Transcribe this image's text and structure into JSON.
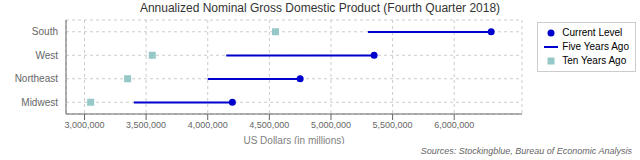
{
  "chart_data": {
    "type": "dumbbell",
    "title": "Annualized Nominal Gross Domestic Product (Fourth Quarter 2018)",
    "xlabel": "US Dollars (in millions)",
    "source": "Sources: Stockingblue, Bureau of Economic Analysis",
    "orientation": "horizontal",
    "categories": [
      "South",
      "West",
      "Northeast",
      "Midwest"
    ],
    "series": [
      {
        "name": "Current Level",
        "color": "#0000CC",
        "marker": "circle",
        "type": "point",
        "values": [
          6300000,
          5350000,
          4750000,
          4200000
        ]
      },
      {
        "name": "Five Years Ago",
        "color": "#0000CC",
        "type": "range",
        "values": [
          5300000,
          4150000,
          4000000,
          3400000
        ]
      },
      {
        "name": "Ten Years Ago",
        "color": "#96C8C8",
        "marker": "square",
        "type": "point",
        "values": [
          4550000,
          3550000,
          3350000,
          3050000
        ]
      }
    ],
    "xlim": [
      2850000,
      6550000
    ],
    "xticks": [
      {
        "value": 3000000,
        "label": "3,000,000"
      },
      {
        "value": 3500000,
        "label": "3,500,000"
      },
      {
        "value": 4000000,
        "label": "4,000,000"
      },
      {
        "value": 4500000,
        "label": "4,500,000"
      },
      {
        "value": 5000000,
        "label": "5,000,000"
      },
      {
        "value": 5500000,
        "label": "5,500,000"
      },
      {
        "value": 6000000,
        "label": "6,000,000"
      }
    ],
    "grid": true,
    "legend": "upper right"
  }
}
